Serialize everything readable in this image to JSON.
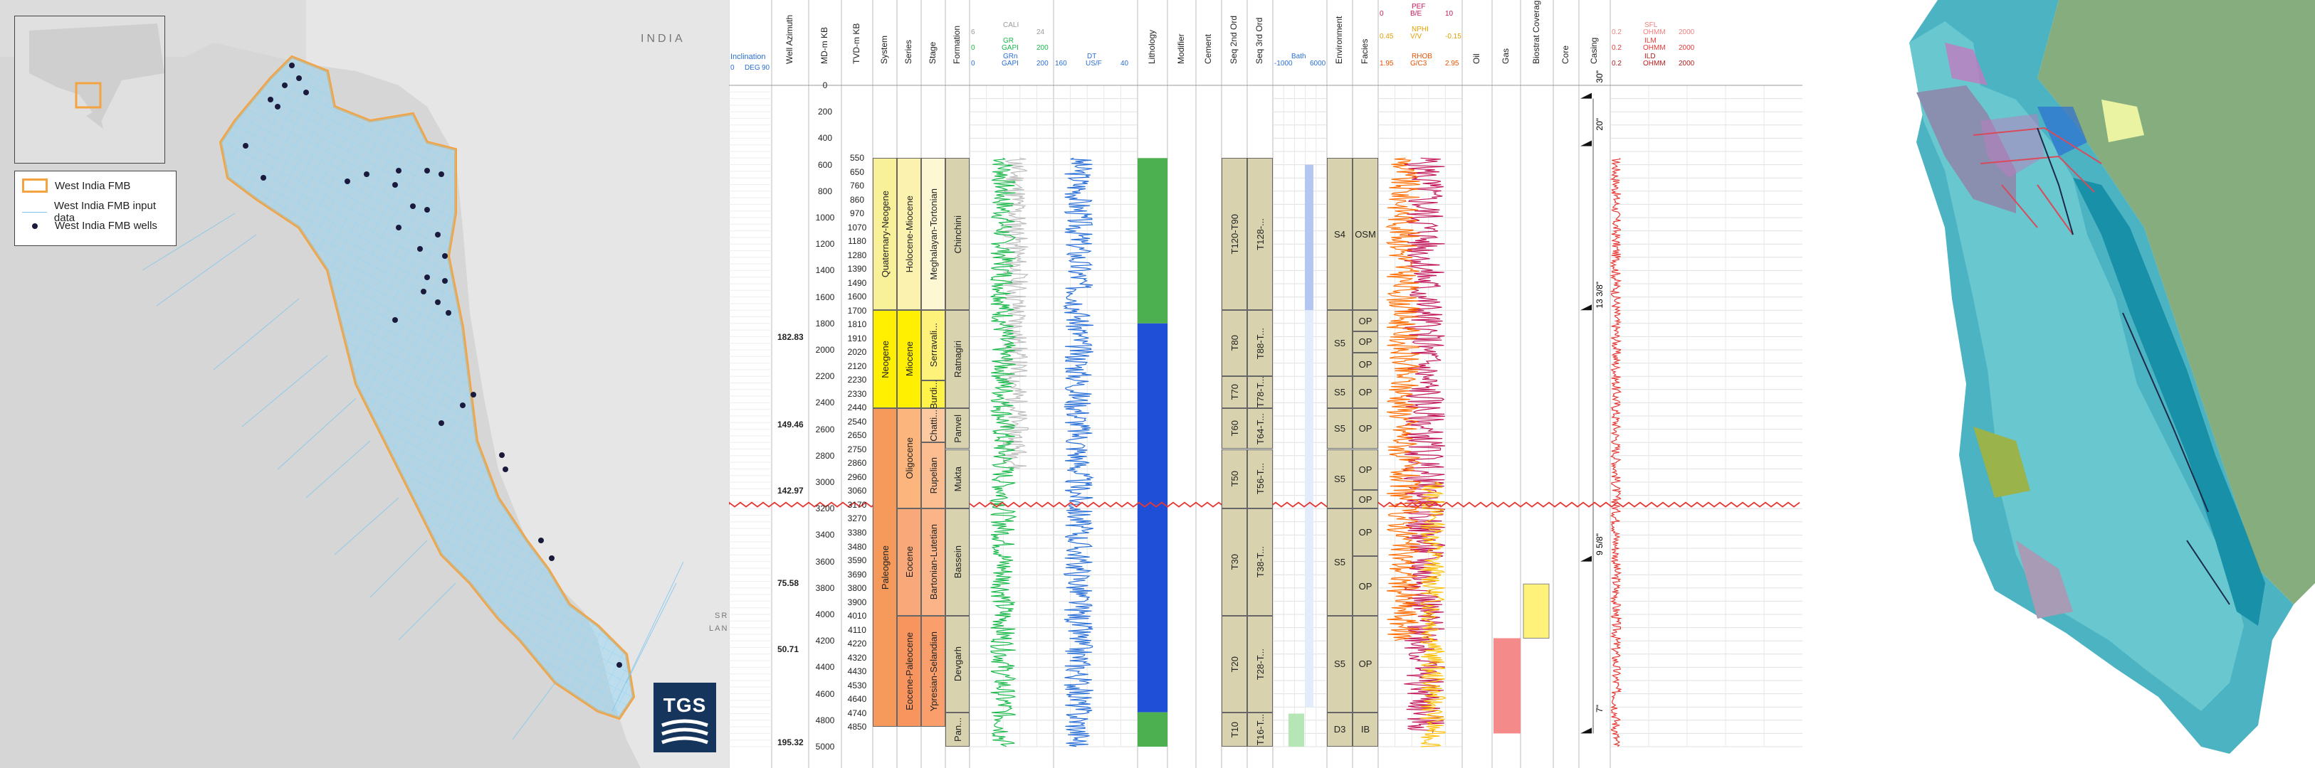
{
  "map_left": {
    "country_label": "INDIA",
    "country_label_2": "SRI",
    "country_label_3": "LAN",
    "legend": [
      {
        "label": "West India FMB",
        "color": "#f5a340"
      },
      {
        "label": "West India FMB input data",
        "color": "#7cc6ee"
      },
      {
        "label": "West India FMB wells",
        "color": "#1a1a3c"
      }
    ],
    "logo": "TGS"
  },
  "log": {
    "inclination": {
      "label": "Inclination",
      "min": "0",
      "unit": "DEG",
      "max": "90"
    },
    "track_titles": {
      "azimuth": "Well Azimuth",
      "md": "MD-m KB",
      "tvd": "TVD-m KB",
      "system": "System",
      "series": "Series",
      "stage": "Stage",
      "formation": "Formation",
      "lithology": "Lithology",
      "modifier": "Modifier",
      "cement": "Cement",
      "seq2": "Seq 2nd Ord",
      "seq3": "Seq 3rd Ord",
      "environment": "Environment",
      "facies": "Facies",
      "oil": "Oil",
      "gas": "Gas",
      "biostrat": "Biostrat Coverage",
      "core": "Core",
      "casing": "Casing"
    },
    "curve_headers": {
      "cali": {
        "name": "CALI",
        "min": "6",
        "max": "24"
      },
      "gr": {
        "name": "GR",
        "min": "0",
        "max": "200",
        "unit": "GAPI"
      },
      "grn": {
        "name": "GRn",
        "min": "0",
        "max": "200",
        "unit": "GAPI"
      },
      "dt": {
        "name": "DT",
        "min": "160",
        "max": "40",
        "unit": "US/F"
      },
      "bath": {
        "name": "Bath",
        "min": "-1000",
        "max": "6000"
      },
      "pef": {
        "name": "PEF",
        "min": "0",
        "unit": "B/E",
        "max": "10"
      },
      "nphi": {
        "name": "NPHI",
        "min": "0.45",
        "unit": "V/V",
        "max": "-0.15"
      },
      "rhob": {
        "name": "RHOB",
        "min": "1.95",
        "unit": "G/C3",
        "max": "2.95"
      },
      "ild": {
        "name": "ILD",
        "min": "0.2",
        "unit": "OHMM",
        "max": "2000"
      },
      "ilm": {
        "name": "ILM",
        "min": "0.2",
        "unit": "OHMM",
        "max": "2000"
      },
      "sfl": {
        "name": "SFL",
        "min": "0.2",
        "unit": "OHMM",
        "max": "2000"
      }
    },
    "md_ticks": [
      "0",
      "200",
      "400",
      "600",
      "800",
      "1000",
      "1200",
      "1400",
      "1600",
      "1800",
      "2000",
      "2200",
      "2400",
      "2600",
      "2800",
      "3000",
      "3200",
      "3400",
      "3600",
      "3800",
      "4000",
      "4200",
      "4400",
      "4600",
      "4800",
      "5000"
    ],
    "tvd_ticks": [
      "550",
      "650",
      "760",
      "860",
      "970",
      "1070",
      "1180",
      "1280",
      "1390",
      "1490",
      "1600",
      "1700",
      "1810",
      "1910",
      "2020",
      "2120",
      "2230",
      "2330",
      "2440",
      "2540",
      "2650",
      "2750",
      "2860",
      "2960",
      "3060",
      "3170",
      "3270",
      "3380",
      "3480",
      "3590",
      "3690",
      "3800",
      "3900",
      "4010",
      "4110",
      "4220",
      "4320",
      "4430",
      "4530",
      "4640",
      "4740",
      "4850"
    ],
    "azimuth_values": [
      {
        "value": "182.83",
        "depth_m": 1900
      },
      {
        "value": "149.46",
        "depth_m": 2560
      },
      {
        "value": "142.97",
        "depth_m": 3060
      },
      {
        "value": "75.58",
        "depth_m": 3760
      },
      {
        "value": "50.71",
        "depth_m": 4260
      },
      {
        "value": "195.32",
        "depth_m": 4960
      }
    ],
    "systems": [
      {
        "label": "Quaternary-Neogene",
        "top": 550,
        "base": 1700,
        "color": "#f9f19a"
      },
      {
        "label": "Neogene",
        "top": 1700,
        "base": 2440,
        "color": "#ffef00"
      },
      {
        "label": "Paleogene",
        "top": 2440,
        "base": 4850,
        "color": "#f59a5a"
      }
    ],
    "series": [
      {
        "label": "Holocene-Miocene",
        "top": 550,
        "base": 1700,
        "color": "#fbf2b0"
      },
      {
        "label": "Miocene",
        "top": 1700,
        "base": 2440,
        "color": "#ffef00"
      },
      {
        "label": "Oligocene",
        "top": 2440,
        "base": 3200,
        "color": "#fbb57d"
      },
      {
        "label": "Eocene",
        "top": 3200,
        "base": 4010,
        "color": "#f9a87a"
      },
      {
        "label": "Eocene-Paleocene",
        "top": 4010,
        "base": 4850,
        "color": "#f8945e"
      }
    ],
    "stages": [
      {
        "label": "Meghalayan-Tortonian",
        "top": 550,
        "base": 1700,
        "color": "#fdf7d4"
      },
      {
        "label": "Serravali...",
        "top": 1700,
        "base": 2230,
        "color": "#fff27a"
      },
      {
        "label": "Burdi...",
        "top": 2230,
        "base": 2440,
        "color": "#fff34a"
      },
      {
        "label": "Chatti...",
        "top": 2440,
        "base": 2700,
        "color": "#fcc9a0"
      },
      {
        "label": "Rupelian",
        "top": 2700,
        "base": 3200,
        "color": "#fcbe90"
      },
      {
        "label": "Bartonian-Lutetian",
        "top": 3200,
        "base": 4010,
        "color": "#fbb488"
      },
      {
        "label": "Ypresian-Selandian",
        "top": 4010,
        "base": 4850,
        "color": "#fa9f6c"
      }
    ],
    "formations": [
      {
        "label": "Chinchini",
        "top": 550,
        "base": 1700
      },
      {
        "label": "Ratnagiri",
        "top": 1700,
        "base": 2440
      },
      {
        "label": "Panvel",
        "top": 2440,
        "base": 2750
      },
      {
        "label": "Mukta",
        "top": 2750,
        "base": 3200
      },
      {
        "label": "Bassein",
        "top": 3200,
        "base": 4010
      },
      {
        "label": "Devgarh",
        "top": 4010,
        "base": 4740
      },
      {
        "label": "Pan...",
        "top": 4740,
        "base": 5000
      }
    ],
    "seq2": [
      {
        "label": "T120-T90",
        "top": 550,
        "base": 1700
      },
      {
        "label": "T80",
        "top": 1700,
        "base": 2200
      },
      {
        "label": "T70",
        "top": 2200,
        "base": 2440
      },
      {
        "label": "T60",
        "top": 2440,
        "base": 2750
      },
      {
        "label": "T50",
        "top": 2750,
        "base": 3200
      },
      {
        "label": "T30",
        "top": 3200,
        "base": 4010
      },
      {
        "label": "T20",
        "top": 4010,
        "base": 4740
      },
      {
        "label": "T10",
        "top": 4740,
        "base": 5000
      }
    ],
    "seq3": [
      {
        "label": "T128-...",
        "top": 550,
        "base": 1700
      },
      {
        "label": "T88-T...",
        "top": 1700,
        "base": 2200
      },
      {
        "label": "T78-T...",
        "top": 2200,
        "base": 2440
      },
      {
        "label": "T64-T...",
        "top": 2440,
        "base": 2750
      },
      {
        "label": "T56-T...",
        "top": 2750,
        "base": 3200
      },
      {
        "label": "T38-T...",
        "top": 3200,
        "base": 4010
      },
      {
        "label": "T28-T...",
        "top": 4010,
        "base": 4740
      },
      {
        "label": "T16-T...",
        "top": 4740,
        "base": 5000
      }
    ],
    "environment": [
      {
        "label": "S4",
        "top": 550,
        "base": 1700
      },
      {
        "label": "S5",
        "top": 1700,
        "base": 2200
      },
      {
        "label": "S5",
        "top": 2200,
        "base": 2440
      },
      {
        "label": "S5",
        "top": 2440,
        "base": 2750
      },
      {
        "label": "S5",
        "top": 2750,
        "base": 3200
      },
      {
        "label": "S5",
        "top": 3200,
        "base": 4010
      },
      {
        "label": "S5",
        "top": 4010,
        "base": 4740
      },
      {
        "label": "D3",
        "top": 4740,
        "base": 5000
      }
    ],
    "facies": [
      {
        "label": "OSM",
        "top": 550,
        "base": 1700
      },
      {
        "label": "OP",
        "top": 1700,
        "base": 1860
      },
      {
        "label": "OP",
        "top": 1860,
        "base": 2020
      },
      {
        "label": "OP",
        "top": 2020,
        "base": 2200
      },
      {
        "label": "OP",
        "top": 2200,
        "base": 2440
      },
      {
        "label": "OP",
        "top": 2440,
        "base": 2750
      },
      {
        "label": "OP",
        "top": 2750,
        "base": 3060
      },
      {
        "label": "OP",
        "top": 3060,
        "base": 3200
      },
      {
        "label": "OP",
        "top": 3200,
        "base": 3560
      },
      {
        "label": "OP",
        "top": 3560,
        "base": 4010
      },
      {
        "label": "OP",
        "top": 4010,
        "base": 4740
      },
      {
        "label": "IB",
        "top": 4740,
        "base": 5000
      }
    ],
    "casing": [
      {
        "label": "30\"",
        "depth_m": 100
      },
      {
        "label": "20\"",
        "depth_m": 460
      },
      {
        "label": "13 3/8\"",
        "depth_m": 1700
      },
      {
        "label": "9 5/8\"",
        "depth_m": 3600
      },
      {
        "label": "7\"",
        "depth_m": 4900
      }
    ],
    "unconformity_depth_m": 3170
  }
}
